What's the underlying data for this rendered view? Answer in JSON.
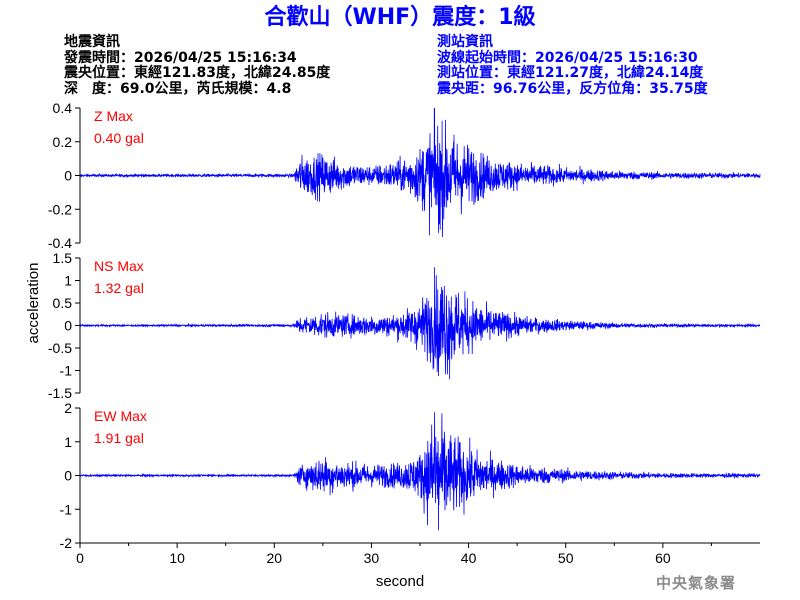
{
  "header": {
    "title": "合歡山（WHF）震度：1級"
  },
  "quake_info": {
    "heading": "地震資訊",
    "origin_time": "發震時間：2026/04/25 15:16:34",
    "epicenter": "震央位置：東經121.83度，北緯24.85度",
    "depth_magnitude": "深　度：69.0公里，芮氏規模：4.8"
  },
  "station_info": {
    "heading": "測站資訊",
    "waveform_start": "波線起始時間：2026/04/25 15:16:30",
    "station_location": "測站位置：東經121.27度，北緯24.14度",
    "distance_azimuth": "震央距：96.76公里，反方位角：35.75度"
  },
  "footer": {
    "agency": "中央氣象署"
  },
  "chart_data": {
    "type": "line",
    "xlabel": "second",
    "ylabel": "acceleration",
    "xlim": [
      0,
      70
    ],
    "x_ticks": [
      "0",
      "10",
      "20",
      "30",
      "40",
      "50",
      "60"
    ],
    "line_color": "#0000ff",
    "label_color": "#ff0000",
    "grid": false,
    "waveform_onset_s": 22,
    "panels": [
      {
        "name": "Z Max",
        "max_label": "0.40 gal",
        "peak": 0.4,
        "ylim": [
          -0.4,
          0.4
        ],
        "y_ticks": [
          "0.4",
          "0.2",
          "0",
          "-0.2",
          "-0.4"
        ],
        "envelope": [
          [
            0,
            0.008
          ],
          [
            22,
            0.01
          ],
          [
            22.5,
            0.12
          ],
          [
            25,
            0.14
          ],
          [
            27,
            0.09
          ],
          [
            30,
            0.06
          ],
          [
            33,
            0.1
          ],
          [
            35,
            0.18
          ],
          [
            36.5,
            0.36
          ],
          [
            38,
            0.28
          ],
          [
            40,
            0.2
          ],
          [
            42,
            0.12
          ],
          [
            45,
            0.08
          ],
          [
            50,
            0.05
          ],
          [
            55,
            0.03
          ],
          [
            60,
            0.02
          ],
          [
            70,
            0.015
          ]
        ]
      },
      {
        "name": "NS Max",
        "max_label": "1.32 gal",
        "peak": 1.32,
        "ylim": [
          -1.5,
          1.5
        ],
        "y_ticks": [
          "1.5",
          "1",
          "0.5",
          "0",
          "-0.5",
          "-1",
          "-1.5"
        ],
        "envelope": [
          [
            0,
            0.02
          ],
          [
            22,
            0.03
          ],
          [
            22.5,
            0.2
          ],
          [
            25,
            0.3
          ],
          [
            28,
            0.25
          ],
          [
            32,
            0.25
          ],
          [
            34,
            0.4
          ],
          [
            36,
            0.8
          ],
          [
            37.5,
            1.3
          ],
          [
            39,
            0.8
          ],
          [
            41,
            0.5
          ],
          [
            43,
            0.35
          ],
          [
            46,
            0.2
          ],
          [
            50,
            0.12
          ],
          [
            55,
            0.06
          ],
          [
            60,
            0.04
          ],
          [
            70,
            0.03
          ]
        ]
      },
      {
        "name": "EW Max",
        "max_label": "1.91 gal",
        "peak": 1.91,
        "ylim": [
          -2,
          2
        ],
        "y_ticks": [
          "2",
          "1",
          "0",
          "-1",
          "-2"
        ],
        "envelope": [
          [
            0,
            0.03
          ],
          [
            22,
            0.03
          ],
          [
            22.5,
            0.3
          ],
          [
            25,
            0.6
          ],
          [
            27,
            0.45
          ],
          [
            30,
            0.35
          ],
          [
            33,
            0.4
          ],
          [
            35,
            0.7
          ],
          [
            36.5,
            1.9
          ],
          [
            38,
            1.4
          ],
          [
            40,
            0.9
          ],
          [
            42,
            0.6
          ],
          [
            45,
            0.35
          ],
          [
            50,
            0.2
          ],
          [
            55,
            0.12
          ],
          [
            60,
            0.08
          ],
          [
            70,
            0.06
          ]
        ]
      }
    ]
  }
}
